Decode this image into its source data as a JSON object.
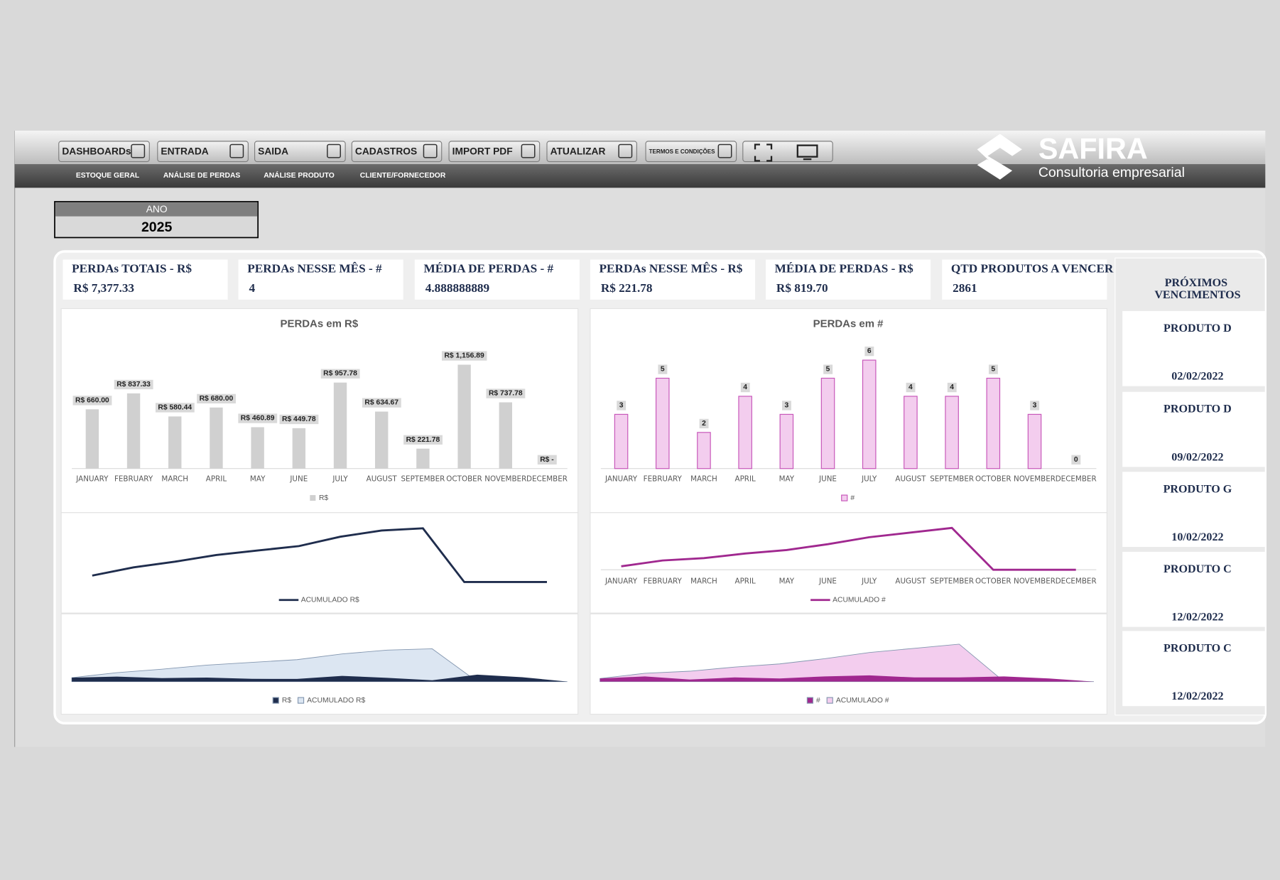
{
  "toolbar": {
    "buttons": [
      "DASHBOARDs",
      "ENTRADA",
      "SAIDA",
      "CADASTROS",
      "IMPORT PDF",
      "ATUALIZAR",
      "TERMOS E CONDIÇÕES"
    ]
  },
  "nav": [
    "ESTOQUE GERAL",
    "ANÁLISE DE PERDAS",
    "ANÁLISE PRODUTO",
    "CLIENTE/FORNECEDOR"
  ],
  "logo": {
    "name": "SAFIRA",
    "tagline": "Consultoria empresarial"
  },
  "year": {
    "label": "ANO",
    "value": 2025
  },
  "kpis": [
    {
      "title": "PERDAs TOTAIS - R$",
      "value": "R$ 7,377.33"
    },
    {
      "title": "PERDAs NESSE MÊS - #",
      "value": 4
    },
    {
      "title": "MÉDIA DE PERDAS - #",
      "value": 4.888888889
    },
    {
      "title": "PERDAs NESSE MÊS - R$",
      "value": "R$ 221.78"
    },
    {
      "title": "MÉDIA DE PERDAS - R$",
      "value": "R$ 819.70"
    },
    {
      "title": "QTD PRODUTOS A VENCER",
      "value": 2861
    }
  ],
  "chart_data": [
    {
      "type": "bar",
      "title": "PERDAs em R$",
      "categories": [
        "JANUARY",
        "FEBRUARY",
        "MARCH",
        "APRIL",
        "MAY",
        "JUNE",
        "JULY",
        "AUGUST",
        "SEPTEMBER",
        "OCTOBER",
        "NOVEMBER",
        "DECEMBER"
      ],
      "series": [
        {
          "name": "R$",
          "color": "#d0d0d0",
          "values": [
            660,
            837.33,
            580.44,
            680,
            460.89,
            449.78,
            957.78,
            634.67,
            221.78,
            1156.89,
            737.78,
            0
          ],
          "value_labels": [
            "R$ 660.00",
            "R$ 837.33",
            "R$ 580.44",
            "R$ 680.00",
            "R$ 460.89",
            "R$ 449.78",
            "R$ 957.78",
            "R$ 634.67",
            "R$ 221.78",
            "R$ 1,156.89",
            "R$ 737.78",
            "R$ -"
          ]
        }
      ],
      "ylim": [
        0,
        1400
      ]
    },
    {
      "type": "line",
      "series": [
        {
          "name": "ACUMULADO R$",
          "color": "#1f2d4d",
          "values": [
            660,
            1497.33,
            2077.77,
            2757.77,
            3218.66,
            3668.44,
            4626.22,
            5260.89,
            5482.67,
            0,
            0,
            0
          ]
        }
      ],
      "ylim": [
        0,
        6000
      ]
    },
    {
      "type": "area",
      "series": [
        {
          "name": "R$",
          "color": "#1f2d4d",
          "values": [
            660,
            837.33,
            580.44,
            680,
            460.89,
            449.78,
            957.78,
            634.67,
            221.78,
            1156.89,
            737.78,
            0
          ]
        },
        {
          "name": "ACUMULADO R$",
          "color": "#dce6f2",
          "values": [
            660,
            1497.33,
            2077.77,
            2757.77,
            3218.66,
            3668.44,
            4626.22,
            5260.89,
            5482.67,
            0,
            0,
            0
          ]
        }
      ],
      "ylim": [
        0,
        6000
      ]
    },
    {
      "type": "bar",
      "title": "PERDAs em #",
      "categories": [
        "JANUARY",
        "FEBRUARY",
        "MARCH",
        "APRIL",
        "MAY",
        "JUNE",
        "JULY",
        "AUGUST",
        "SEPTEMBER",
        "OCTOBER",
        "NOVEMBER",
        "DECEMBER"
      ],
      "series": [
        {
          "name": "#",
          "color": "#f3cdee",
          "edge_color": "#c653b8",
          "values": [
            3,
            5,
            2,
            4,
            3,
            5,
            6,
            4,
            4,
            5,
            3,
            0
          ]
        }
      ],
      "ylim": [
        0,
        7
      ]
    },
    {
      "type": "line",
      "categories": [
        "JANUARY",
        "FEBRUARY",
        "MARCH",
        "APRIL",
        "MAY",
        "JUNE",
        "JULY",
        "AUGUST",
        "SEPTEMBER",
        "OCTOBER",
        "NOVEMBER",
        "DECEMBER"
      ],
      "series": [
        {
          "name": "ACUMULADO #",
          "color": "#a0288f",
          "values": [
            3,
            8,
            10,
            14,
            17,
            22,
            28,
            32,
            36,
            0,
            0,
            0
          ]
        }
      ],
      "ylim": [
        0,
        40
      ]
    },
    {
      "type": "area",
      "series": [
        {
          "name": "#",
          "color": "#a0288f",
          "values": [
            3,
            5,
            2,
            4,
            3,
            5,
            6,
            4,
            4,
            5,
            3,
            0
          ]
        },
        {
          "name": "ACUMULADO #",
          "color": "#f3cdee",
          "values": [
            3,
            8,
            10,
            14,
            17,
            22,
            28,
            32,
            36,
            0,
            0,
            0
          ]
        }
      ],
      "ylim": [
        0,
        40
      ]
    }
  ],
  "upcoming": {
    "title": "PRÓXIMOS VENCIMENTOS",
    "items": [
      {
        "name": "PRODUTO D",
        "date": "02/02/2022"
      },
      {
        "name": "PRODUTO D",
        "date": "09/02/2022"
      },
      {
        "name": "PRODUTO G",
        "date": "10/02/2022"
      },
      {
        "name": "PRODUTO C",
        "date": "12/02/2022"
      },
      {
        "name": "PRODUTO C",
        "date": "12/02/2022"
      }
    ]
  }
}
